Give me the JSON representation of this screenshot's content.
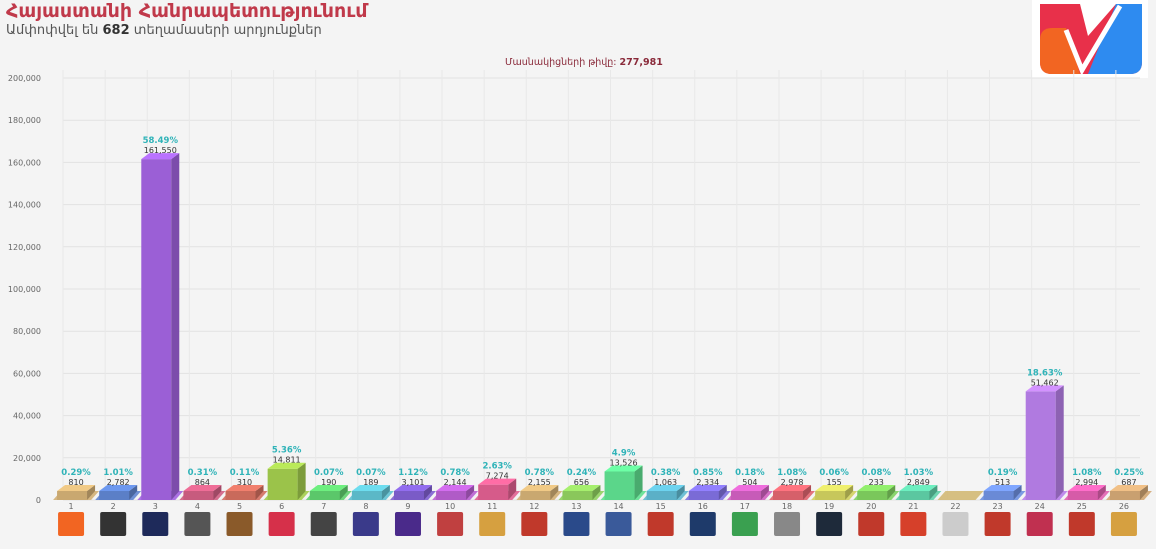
{
  "header": {
    "title": "Հայաստանի Հանրապետությունում",
    "subtitle_prefix": "Ամփոփվել են",
    "subtitle_count": "682",
    "subtitle_suffix": "տեղամասերի արդյունքներ",
    "participants_label": "Մասնակիցների թիվը:",
    "participants_value": "277,981"
  },
  "colors": {
    "title": "#c0394a",
    "pct_label": "#2fb3b8",
    "logo_red": "#e8304a",
    "logo_orange": "#f26522",
    "logo_blue": "#2e8bf0"
  },
  "chart_data": {
    "type": "bar",
    "title": "",
    "xlabel": "",
    "ylabel": "",
    "ylim": [
      0,
      200000
    ],
    "yticks": [
      "0",
      "20,000",
      "40,000",
      "60,000",
      "80,000",
      "100,000",
      "120,000",
      "140,000",
      "160,000",
      "180,000",
      "200,000"
    ],
    "grid": true,
    "categories": [
      "1",
      "2",
      "3",
      "4",
      "5",
      "6",
      "7",
      "8",
      "9",
      "10",
      "11",
      "12",
      "13",
      "14",
      "15",
      "16",
      "17",
      "18",
      "19",
      "20",
      "21",
      "22",
      "23",
      "24",
      "25",
      "26"
    ],
    "values": [
      810,
      2782,
      161550,
      864,
      310,
      14811,
      190,
      189,
      3101,
      2144,
      7274,
      2155,
      656,
      13526,
      1063,
      2334,
      504,
      2978,
      155,
      233,
      2849,
      0,
      513,
      51462,
      2994,
      687
    ],
    "value_labels": [
      "810",
      "2,782",
      "161,550",
      "864",
      "310",
      "14,811",
      "190",
      "189",
      "3,101",
      "2,144",
      "7,274",
      "2,155",
      "656",
      "13,526",
      "1,063",
      "2,334",
      "504",
      "2,978",
      "155",
      "233",
      "2,849",
      "",
      "513",
      "51,462",
      "2,994",
      "687"
    ],
    "percent_labels": [
      "0.29%",
      "1.01%",
      "58.49%",
      "0.31%",
      "0.11%",
      "5.36%",
      "0.07%",
      "0.07%",
      "1.12%",
      "0.78%",
      "2.63%",
      "0.78%",
      "0.24%",
      "4.9%",
      "0.38%",
      "0.85%",
      "0.18%",
      "1.08%",
      "0.06%",
      "0.08%",
      "1.03%",
      "",
      "0.19%",
      "18.63%",
      "1.08%",
      "0.25%"
    ],
    "bar_colors": [
      "#c9a870",
      "#5b7fc7",
      "#9b5fd6",
      "#c75b7e",
      "#c96a5b",
      "#9bc34a",
      "#5bc76a",
      "#5bb8c7",
      "#7a5bc7",
      "#b05bc7",
      "#d65b8a",
      "#c9a870",
      "#8ac75b",
      "#5bd68a",
      "#5bb0c7",
      "#7a6bd6",
      "#c75bb8",
      "#d6606a",
      "#c7c75b",
      "#7ac75b",
      "#5bc7a0",
      "#c9b070",
      "#6a8ad6",
      "#b07ae0",
      "#d65ba8",
      "#c9a070"
    ],
    "logo_colors": [
      "#f26522",
      "#333333",
      "#1e2a5a",
      "#555555",
      "#8a5a2a",
      "#d6304a",
      "#444444",
      "#3a3a8a",
      "#4a2a8a",
      "#c04040",
      "#d6a040",
      "#c0392b",
      "#2a4a8a",
      "#3a5a9a",
      "#c0392b",
      "#1e3a6a",
      "#3aa050",
      "#888888",
      "#1e2a3a",
      "#c0392b",
      "#d6402a",
      "#cccccc",
      "#c0392b",
      "#c03050",
      "#c0392b",
      "#d6a040"
    ]
  }
}
